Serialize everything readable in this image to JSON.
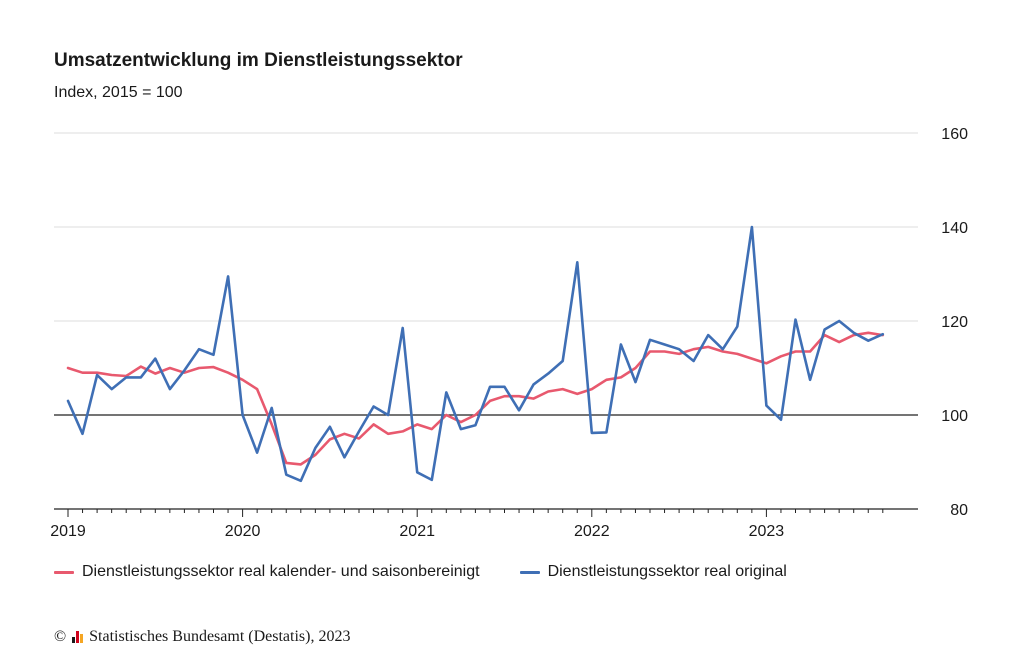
{
  "header": {
    "title": "Umsatzentwicklung im Dienstleistungssektor",
    "subtitle": "Index, 2015 = 100"
  },
  "legend": [
    {
      "label": "Dienstleistungssektor real kalender- und saisonbereinigt",
      "color": "#e8596e"
    },
    {
      "label": "Dienstleistungssektor real original",
      "color": "#3f6fb5"
    }
  ],
  "footer": {
    "copyright": "©",
    "source": "Statistisches Bundesamt (Destatis), 2023"
  },
  "chart_data": {
    "type": "line",
    "title": "Umsatzentwicklung im Dienstleistungssektor",
    "subtitle": "Index, 2015 = 100",
    "x_start": "2019-01",
    "x_ticks": [
      "2019",
      "2020",
      "2021",
      "2022",
      "2023"
    ],
    "y_ticks": [
      80,
      100,
      120,
      140,
      160
    ],
    "ylim": [
      80,
      160
    ],
    "reference_line": 100,
    "grid": true,
    "legend_position": "bottom",
    "series": [
      {
        "name": "Dienstleistungssektor real kalender- und saisonbereinigt",
        "color": "#e8596e",
        "values": [
          110.0,
          109.0,
          109.0,
          108.5,
          108.3,
          110.3,
          108.8,
          110.0,
          109.0,
          110.0,
          110.2,
          109.0,
          107.5,
          105.5,
          98.0,
          89.8,
          89.5,
          91.5,
          94.8,
          96.0,
          95.0,
          98.0,
          96.0,
          96.5,
          98.0,
          97.0,
          100.0,
          98.5,
          100.0,
          103.0,
          104.0,
          104.0,
          103.5,
          105.0,
          105.5,
          104.5,
          105.5,
          107.5,
          108.0,
          110.0,
          113.5,
          113.5,
          113.0,
          114.0,
          114.5,
          113.5,
          113.0,
          112.0,
          111.0,
          112.5,
          113.5,
          113.5,
          117.0,
          115.5,
          117.0,
          117.5,
          117.0
        ]
      },
      {
        "name": "Dienstleistungssektor real original",
        "color": "#3f6fb5",
        "values": [
          103.0,
          96.0,
          108.5,
          105.5,
          108.0,
          108.0,
          112.0,
          105.5,
          109.5,
          114.0,
          112.8,
          129.5,
          100.0,
          92.0,
          101.5,
          87.3,
          86.0,
          93.0,
          97.5,
          91.0,
          96.5,
          101.8,
          100.0,
          118.5,
          87.8,
          86.2,
          104.8,
          97.0,
          97.8,
          106.0,
          106.0,
          101.0,
          106.5,
          108.8,
          111.5,
          132.5,
          96.2,
          96.3,
          115.0,
          107.0,
          116.0,
          115.0,
          114.0,
          111.5,
          117.0,
          114.0,
          118.8,
          140.0,
          102.0,
          99.0,
          120.3,
          107.5,
          118.2,
          120.0,
          117.5,
          115.8,
          117.2
        ]
      }
    ]
  }
}
